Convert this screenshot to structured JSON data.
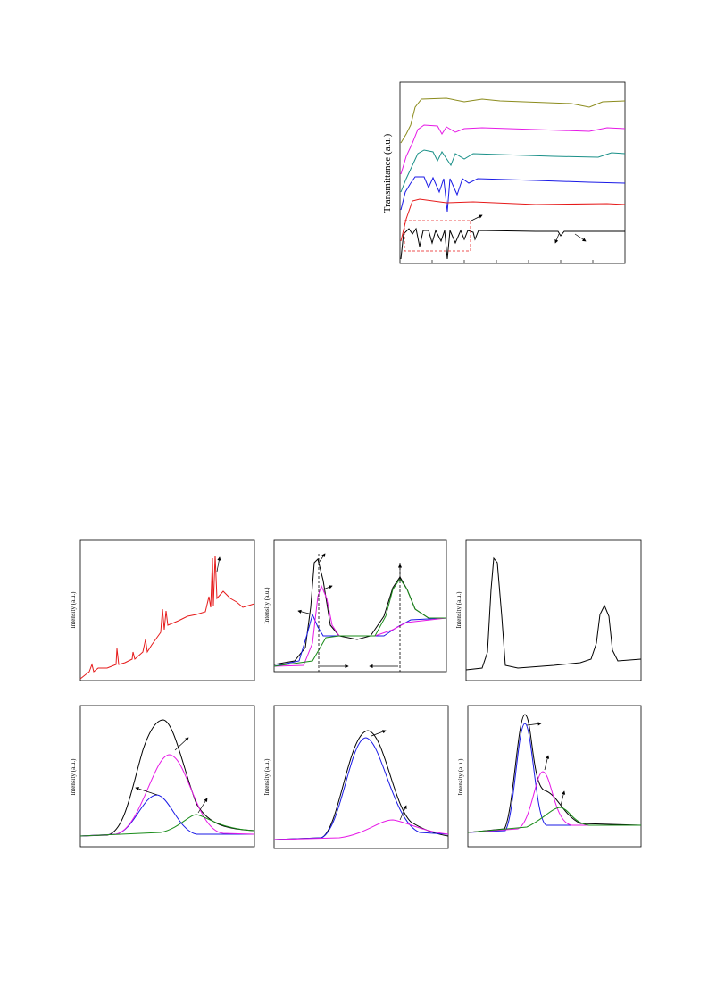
{
  "figures": [
    {
      "ylabel": "Transmittance (a.u.)"
    },
    {
      "ylabel": "Intensity (a.u.)"
    },
    {
      "ylabel": "Intensity (a.u.)"
    },
    {
      "ylabel": "Intensity (a.u.)"
    },
    {
      "ylabel": "Intensity (a.u.)"
    },
    {
      "ylabel": "Intensity (a.u.)"
    },
    {
      "ylabel": "Intensity (a.u.)"
    }
  ]
}
